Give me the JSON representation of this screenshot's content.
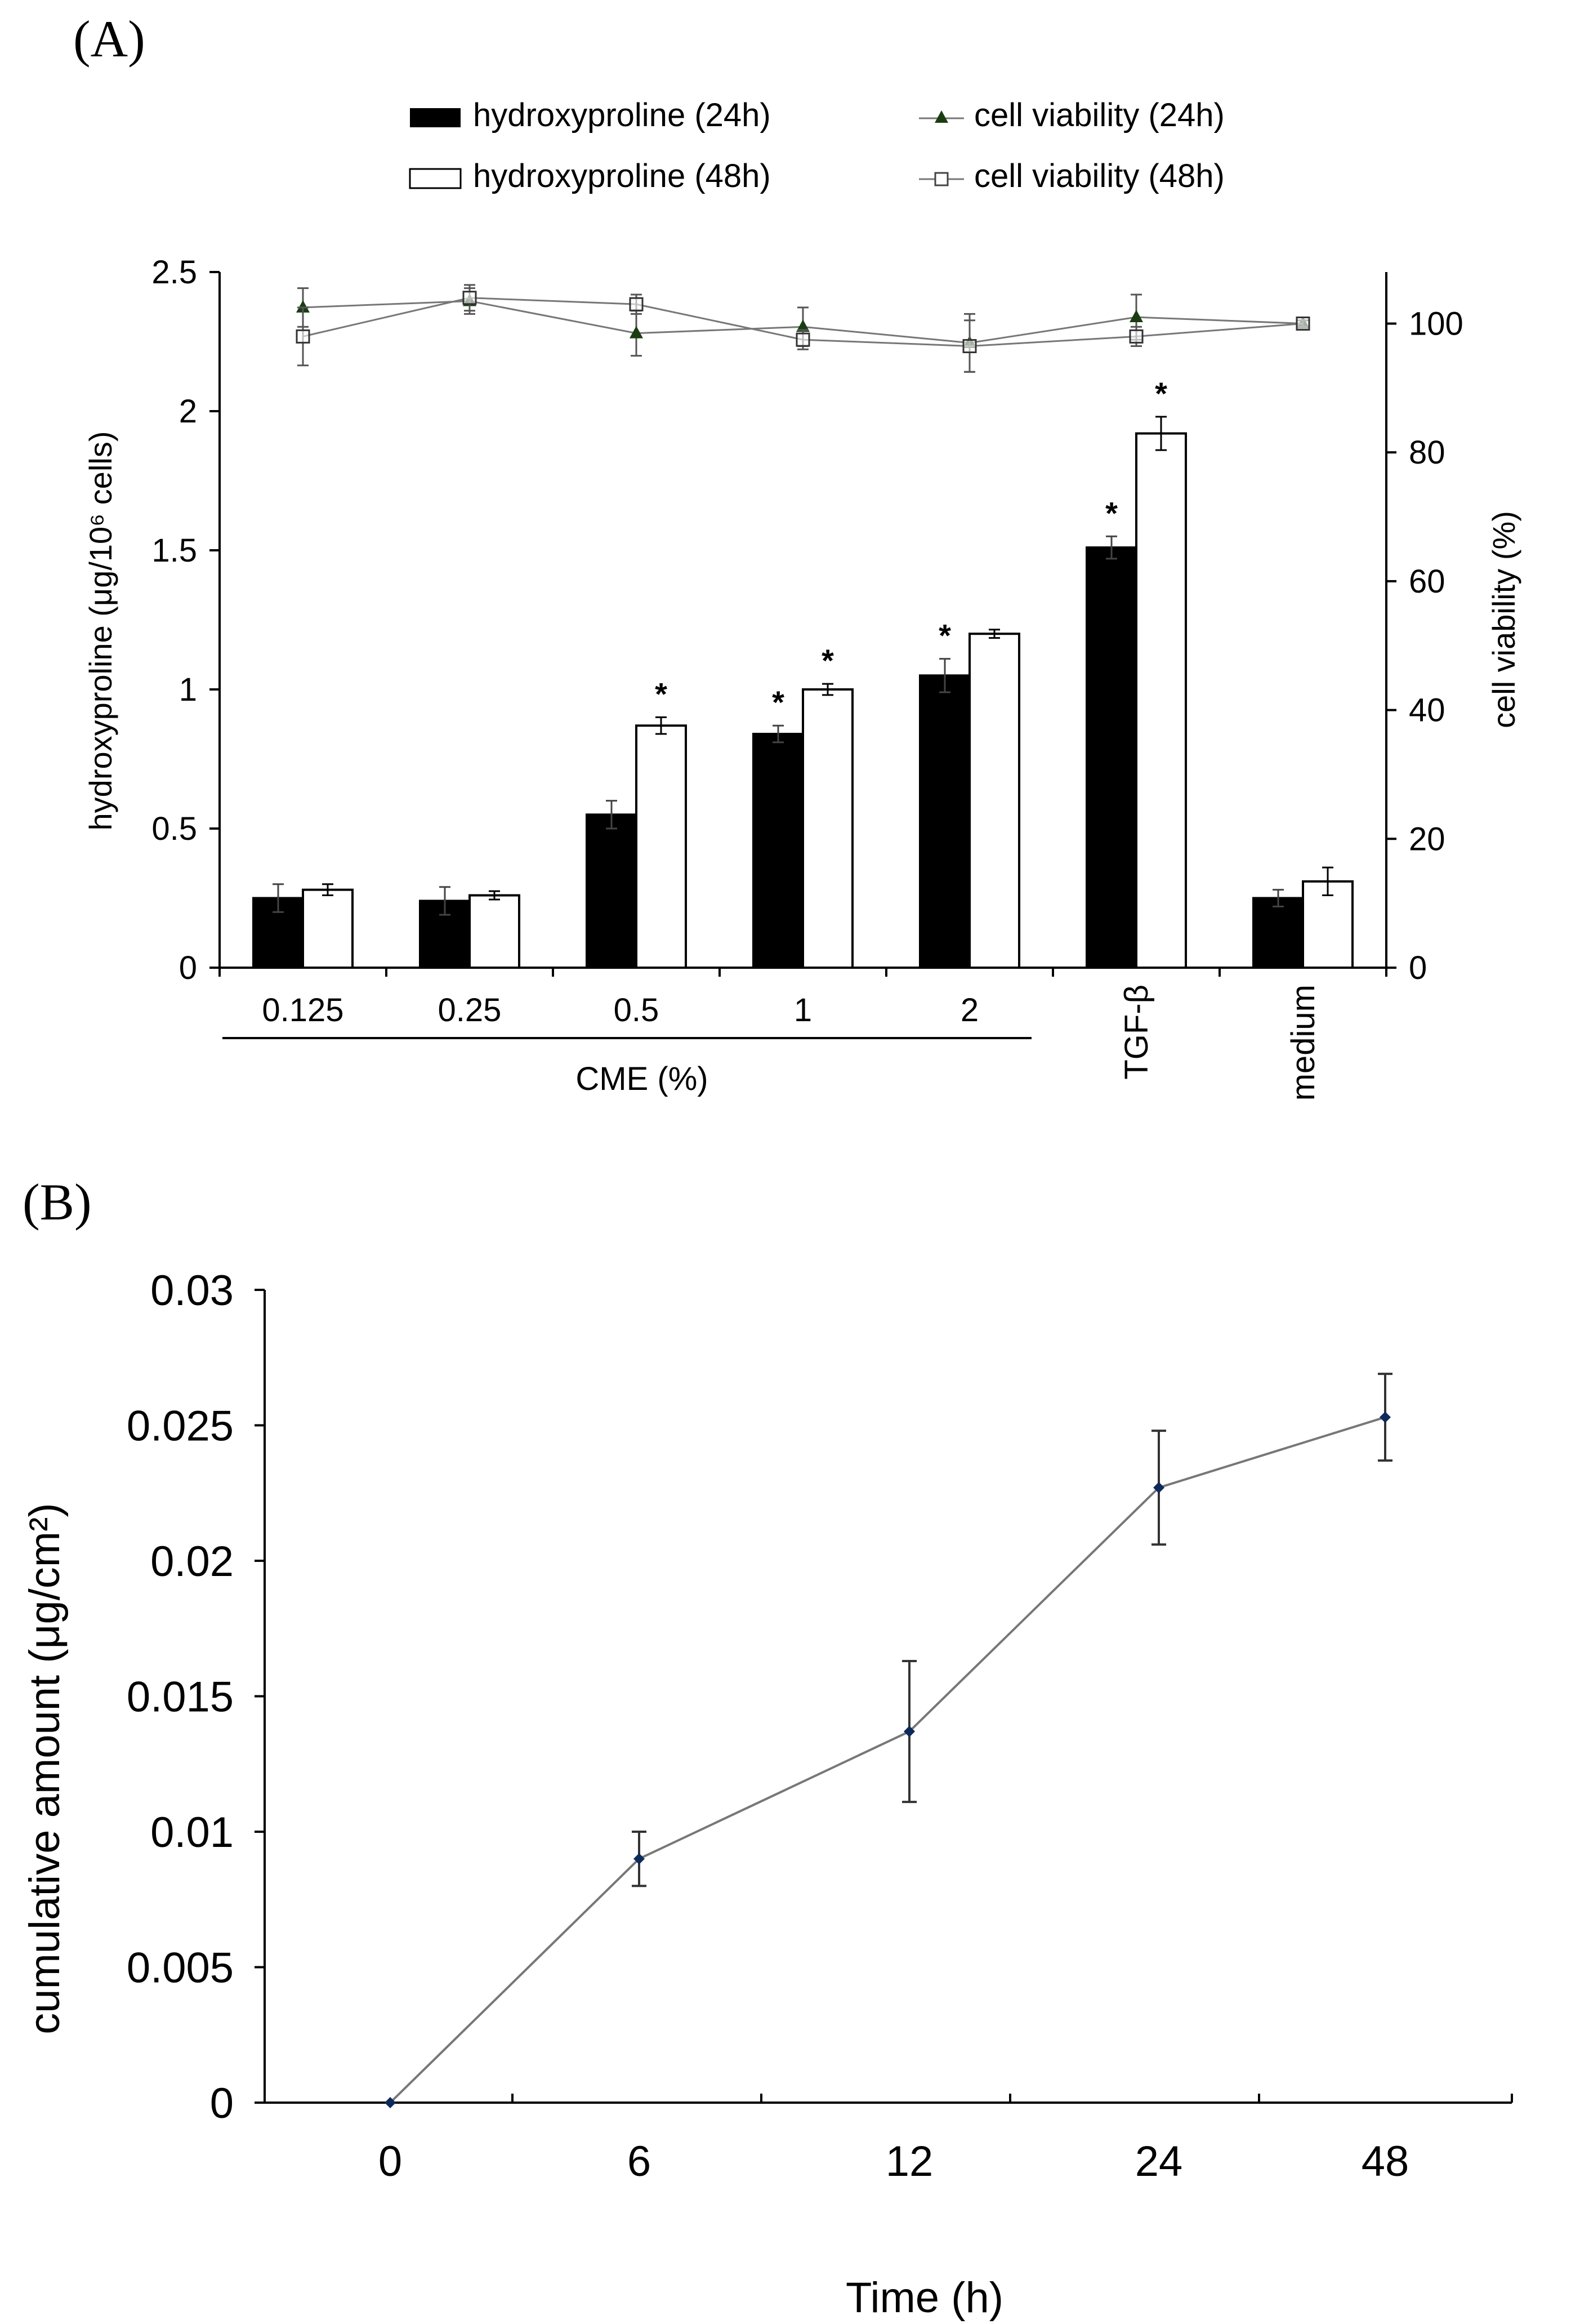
{
  "panel_a_label": "(A)",
  "panel_b_label": "(B)",
  "legend": {
    "hyp24": "hydroxyproline (24h)",
    "hyp48": "hydroxyproline (48h)",
    "via24": "cell viability (24h)",
    "via48": "cell viability (48h)"
  },
  "colors": {
    "bar24": "#000000",
    "bar48": "#ffffff",
    "line": "#777777",
    "marker24": "#1a3d12",
    "markerB": "#0d2a5a"
  },
  "chart_data": [
    {
      "type": "bar",
      "title": "",
      "categories": [
        "0.125",
        "0.25",
        "0.5",
        "1",
        "2",
        "TGF-β",
        "medium"
      ],
      "group_label": "CME (%)",
      "ylabel": "hydroxyproline (μg/10⁶ cells)",
      "ylim": [
        0,
        2.5
      ],
      "yticks": [
        "0",
        "0.5",
        "1",
        "1.5",
        "2",
        "2.5"
      ],
      "y2label": "cell viability (%)",
      "y2lim": [
        0,
        108
      ],
      "y2ticks": [
        "0",
        "20",
        "40",
        "60",
        "80",
        "100"
      ],
      "series": [
        {
          "name": "hydroxyproline (24h)",
          "kind": "bar",
          "values": [
            0.25,
            0.24,
            0.55,
            0.84,
            1.05,
            1.51,
            0.25
          ],
          "errors": [
            0.05,
            0.05,
            0.05,
            0.03,
            0.06,
            0.04,
            0.03
          ],
          "significant": [
            false,
            false,
            false,
            true,
            true,
            true,
            false
          ]
        },
        {
          "name": "hydroxyproline (48h)",
          "kind": "bar",
          "values": [
            0.28,
            0.26,
            0.87,
            1.0,
            1.2,
            1.92,
            0.31
          ],
          "errors": [
            0.02,
            0.015,
            0.03,
            0.02,
            0.015,
            0.06,
            0.05
          ],
          "significant": [
            false,
            false,
            true,
            true,
            false,
            true,
            false
          ]
        },
        {
          "name": "cell viability (24h)",
          "kind": "line",
          "axis": "right",
          "values": [
            102.5,
            103.5,
            98.5,
            99.5,
            97,
            101,
            100
          ],
          "errors": [
            3,
            2,
            3.5,
            3,
            4.5,
            3.5,
            0.5
          ]
        },
        {
          "name": "cell viability (48h)",
          "kind": "line",
          "axis": "right",
          "values": [
            98,
            104,
            103,
            97.5,
            96.5,
            98,
            100
          ],
          "errors": [
            4.5,
            2,
            1.5,
            1.5,
            4,
            1.5,
            0.5
          ]
        }
      ],
      "significance_mark": "*"
    },
    {
      "type": "line",
      "title": "",
      "x": [
        "0",
        "6",
        "12",
        "24",
        "48"
      ],
      "values": [
        0,
        0.009,
        0.0137,
        0.0227,
        0.0253
      ],
      "errors": [
        0,
        0.001,
        0.0026,
        0.0021,
        0.0016
      ],
      "xlabel": "Time (h)",
      "ylabel": "cumulative amount (μg/cm²)",
      "ylim": [
        0,
        0.03
      ],
      "yticks": [
        "0",
        "0.005",
        "0.01",
        "0.015",
        "0.02",
        "0.025",
        "0.03"
      ]
    }
  ]
}
